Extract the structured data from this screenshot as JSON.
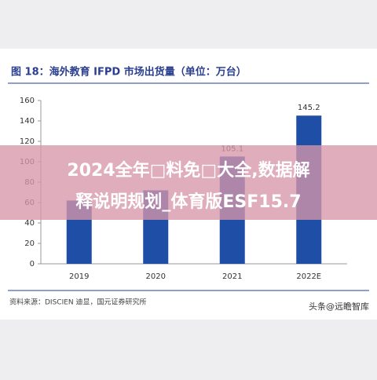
{
  "chart_data": {
    "type": "bar",
    "title": "图 18：海外教育 IFPD 市场出货量（单位：万台）",
    "categories": [
      "2019",
      "2020",
      "2021",
      "2022E"
    ],
    "values": [
      62,
      72,
      105.1,
      145.2
    ],
    "value_labels": [
      null,
      null,
      "105.1",
      "145.2"
    ],
    "color": "#1f4ea6",
    "ylim": [
      0,
      160
    ],
    "yticks": [
      0,
      20,
      40,
      60,
      80,
      100,
      120,
      140,
      160
    ],
    "source": "资料来源：DISCIEN 迪显，国元证券研究所",
    "watermark": "头条@远瞻智库",
    "banner": [
      "2024全年□料免□大全,数据解",
      "释说明规划_体育版ESF15.7"
    ]
  }
}
